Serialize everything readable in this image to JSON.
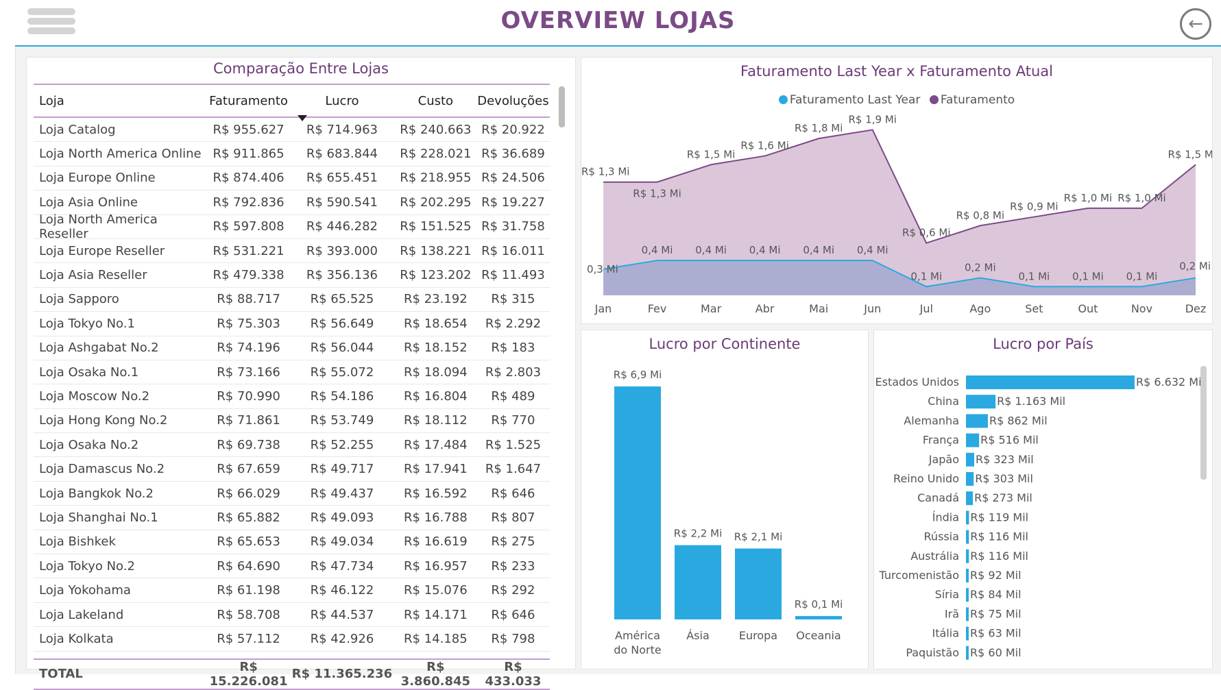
{
  "header": {
    "title": "OVERVIEW LOJAS"
  },
  "colors": {
    "purple": "#7b4a87",
    "blue": "#2aa9e0",
    "area_fill": "#d8c1d6"
  },
  "table": {
    "title": "Comparação Entre Lojas",
    "columns": [
      "Loja",
      "Faturamento",
      "Lucro",
      "Custo",
      "Devoluções"
    ],
    "rows": [
      [
        "Loja Catalog",
        "R$ 955.627",
        "R$ 714.963",
        "R$ 240.663",
        "R$ 20.922"
      ],
      [
        "Loja North America Online",
        "R$ 911.865",
        "R$ 683.844",
        "R$ 228.021",
        "R$ 36.689"
      ],
      [
        "Loja Europe Online",
        "R$ 874.406",
        "R$ 655.451",
        "R$ 218.955",
        "R$ 24.506"
      ],
      [
        "Loja Asia Online",
        "R$ 792.836",
        "R$ 590.541",
        "R$ 202.295",
        "R$ 19.227"
      ],
      [
        "Loja North America Reseller",
        "R$ 597.808",
        "R$ 446.282",
        "R$ 151.525",
        "R$ 31.758"
      ],
      [
        "Loja Europe Reseller",
        "R$ 531.221",
        "R$ 393.000",
        "R$ 138.221",
        "R$ 16.011"
      ],
      [
        "Loja Asia Reseller",
        "R$ 479.338",
        "R$ 356.136",
        "R$ 123.202",
        "R$ 11.493"
      ],
      [
        "Loja Sapporo",
        "R$ 88.717",
        "R$ 65.525",
        "R$ 23.192",
        "R$ 315"
      ],
      [
        "Loja Tokyo No.1",
        "R$ 75.303",
        "R$ 56.649",
        "R$ 18.654",
        "R$ 2.292"
      ],
      [
        "Loja Ashgabat No.2",
        "R$ 74.196",
        "R$ 56.044",
        "R$ 18.152",
        "R$ 183"
      ],
      [
        "Loja Osaka No.1",
        "R$ 73.166",
        "R$ 55.072",
        "R$ 18.094",
        "R$ 2.803"
      ],
      [
        "Loja Moscow No.2",
        "R$ 70.990",
        "R$ 54.186",
        "R$ 16.804",
        "R$ 489"
      ],
      [
        "Loja Hong Kong No.2",
        "R$ 71.861",
        "R$ 53.749",
        "R$ 18.112",
        "R$ 770"
      ],
      [
        "Loja Osaka No.2",
        "R$ 69.738",
        "R$ 52.255",
        "R$ 17.484",
        "R$ 1.525"
      ],
      [
        "Loja Damascus No.2",
        "R$ 67.659",
        "R$ 49.717",
        "R$ 17.941",
        "R$ 1.647"
      ],
      [
        "Loja Bangkok No.2",
        "R$ 66.029",
        "R$ 49.437",
        "R$ 16.592",
        "R$ 646"
      ],
      [
        "Loja Shanghai No.1",
        "R$ 65.882",
        "R$ 49.093",
        "R$ 16.788",
        "R$ 807"
      ],
      [
        "Loja Bishkek",
        "R$ 65.653",
        "R$ 49.034",
        "R$ 16.619",
        "R$ 275"
      ],
      [
        "Loja Tokyo No.2",
        "R$ 64.690",
        "R$ 47.734",
        "R$ 16.957",
        "R$ 233"
      ],
      [
        "Loja Yokohama",
        "R$ 61.198",
        "R$ 46.122",
        "R$ 15.076",
        "R$ 292"
      ],
      [
        "Loja Lakeland",
        "R$ 58.708",
        "R$ 44.537",
        "R$ 14.171",
        "R$ 646"
      ],
      [
        "Loja Kolkata",
        "R$ 57.112",
        "R$ 42.926",
        "R$ 14.185",
        "R$ 798"
      ]
    ],
    "total": [
      "TOTAL",
      "R$ 15.226.081",
      "R$ 11.365.236",
      "R$ 3.860.845",
      "R$ 433.033"
    ]
  },
  "chart_data": [
    {
      "type": "area",
      "title": "Faturamento Last Year x Faturamento Atual",
      "categories": [
        "Jan",
        "Fev",
        "Mar",
        "Abr",
        "Mai",
        "Jun",
        "Jul",
        "Ago",
        "Set",
        "Out",
        "Nov",
        "Dez"
      ],
      "series": [
        {
          "name": "Faturamento Last Year",
          "color": "#2aa9e0",
          "values": [
            0.3,
            0.4,
            0.4,
            0.4,
            0.4,
            0.4,
            0.1,
            0.2,
            0.1,
            0.1,
            0.1,
            0.2
          ],
          "labels": [
            "0,3 Mi",
            "0,4 Mi",
            "0,4 Mi",
            "0,4 Mi",
            "0,4 Mi",
            "0,4 Mi",
            "0,1 Mi",
            "0,2 Mi",
            "0,1 Mi",
            "0,1 Mi",
            "0,1 Mi",
            "0,2 Mi"
          ]
        },
        {
          "name": "Faturamento",
          "color": "#7b4a87",
          "values": [
            1.3,
            1.3,
            1.5,
            1.6,
            1.8,
            1.9,
            0.6,
            0.8,
            0.9,
            1.0,
            1.0,
            1.5
          ],
          "labels": [
            "R$ 1,3 Mi",
            "R$ 1,3 Mi",
            "R$ 1,5 Mi",
            "R$ 1,6 Mi",
            "R$ 1,8 Mi",
            "R$ 1,9 Mi",
            "R$ 0,6 Mi",
            "R$ 0,8 Mi",
            "R$ 0,9 Mi",
            "R$ 1,0 Mi",
            "R$ 1,0 Mi",
            "R$ 1,5 Mi"
          ]
        }
      ],
      "legend": "top-center"
    },
    {
      "type": "bar",
      "title": "Lucro por Continente",
      "categories": [
        "América do Norte",
        "Ásia",
        "Europa",
        "Oceania"
      ],
      "values": [
        6.9,
        2.2,
        2.1,
        0.1
      ],
      "labels": [
        "R$ 6,9 Mi",
        "R$ 2,2 Mi",
        "R$ 2,1 Mi",
        "R$ 0,1 Mi"
      ],
      "color": "#2aa9e0"
    },
    {
      "type": "bar",
      "orientation": "horizontal",
      "title": "Lucro por País",
      "categories": [
        "Estados Unidos",
        "China",
        "Alemanha",
        "França",
        "Japão",
        "Reino Unido",
        "Canadá",
        "Índia",
        "Rússia",
        "Austrália",
        "Turcomenistão",
        "Síria",
        "Irã",
        "Itália",
        "Paquistão"
      ],
      "values": [
        6632,
        1163,
        862,
        516,
        323,
        303,
        273,
        119,
        116,
        116,
        92,
        84,
        75,
        63,
        60
      ],
      "labels": [
        "R$ 6.632 Mil",
        "R$ 1.163 Mil",
        "R$ 862 Mil",
        "R$ 516 Mil",
        "R$ 323 Mil",
        "R$ 303 Mil",
        "R$ 273 Mil",
        "R$ 119 Mil",
        "R$ 116 Mil",
        "R$ 116 Mil",
        "R$ 92 Mil",
        "R$ 84 Mil",
        "R$ 75 Mil",
        "R$ 63 Mil",
        "R$ 60 Mil"
      ],
      "color": "#2aa9e0"
    }
  ]
}
